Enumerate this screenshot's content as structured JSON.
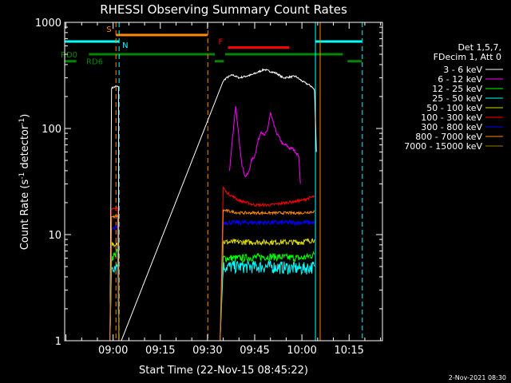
{
  "chart_data": {
    "type": "line",
    "title": "RHESSI Observing Summary Count Rates",
    "xlabel": "Start Time (22-Nov-15 08:45:22)",
    "ylabel": "Count Rate (s⁻¹ detector⁻¹)",
    "ylabel_parts": [
      "Count Rate (s",
      "-1",
      " detector",
      "-1",
      ")"
    ],
    "yscale": "log",
    "ylim": [
      1,
      1000
    ],
    "xlim_min": [
      -15.4,
      85.6
    ],
    "x_unit": "minutes after 09:00",
    "y_ticks": [
      {
        "v": 1,
        "label": "1"
      },
      {
        "v": 10,
        "label": "10"
      },
      {
        "v": 100,
        "label": "100"
      },
      {
        "v": 1000,
        "label": "1000"
      }
    ],
    "x_ticks": [
      {
        "m": 0,
        "label": "09:00"
      },
      {
        "m": 15,
        "label": "09:15"
      },
      {
        "m": 30,
        "label": "09:30"
      },
      {
        "m": 45,
        "label": "09:45"
      },
      {
        "m": 60,
        "label": "10:00"
      },
      {
        "m": 75,
        "label": "10:15"
      }
    ],
    "legend_header": [
      "Det 1,5,7,",
      "FDecim 1, Att 0"
    ],
    "legend_position": "right",
    "footer_date": "2-Nov-2021 08:30",
    "series": [
      {
        "name": "3 - 6 keV",
        "color": "#ffffff",
        "noise": 0.02,
        "x": [
          -1,
          -0.5,
          1,
          1.7,
          1.8,
          2.6,
          2.61,
          35,
          36,
          38,
          40,
          44,
          48,
          52,
          54,
          58,
          60,
          63,
          64,
          64.6
        ],
        "y": [
          1,
          240,
          250,
          245,
          1,
          1,
          1,
          280,
          300,
          320,
          300,
          320,
          360,
          330,
          300,
          310,
          280,
          250,
          230,
          60
        ]
      },
      {
        "name": "6 - 12 keV",
        "color": "#ff00ff",
        "noise": 0.03,
        "x": [
          37,
          38,
          39,
          40,
          41,
          42,
          43,
          44,
          45,
          46,
          47,
          48,
          49,
          50,
          51,
          52,
          53,
          54,
          55,
          56,
          57,
          58,
          59,
          59.5
        ],
        "y": [
          40,
          85,
          160,
          80,
          45,
          35,
          38,
          50,
          55,
          75,
          95,
          85,
          95,
          140,
          110,
          90,
          80,
          70,
          70,
          65,
          65,
          60,
          55,
          30
        ]
      },
      {
        "name": "12 - 25 keV",
        "color": "#00ff00",
        "noise": 0.08,
        "x": [
          -1,
          -0.5,
          1.5,
          1.8,
          34,
          35,
          40,
          50,
          60,
          64
        ],
        "y": [
          1,
          6,
          7,
          1,
          1,
          6,
          6,
          6.2,
          6,
          6.5
        ]
      },
      {
        "name": "25 - 50 keV",
        "color": "#00ffff",
        "noise": 0.14,
        "x": [
          -1,
          -0.5,
          1.5,
          1.8,
          34,
          35,
          40,
          50,
          60,
          64
        ],
        "y": [
          1,
          5,
          5.2,
          1,
          1,
          5,
          5,
          5,
          4.8,
          5
        ]
      },
      {
        "name": "50 - 100 keV",
        "color": "#dddd00",
        "noise": 0.06,
        "x": [
          -1,
          -0.5,
          1.5,
          1.8,
          34,
          35,
          40,
          50,
          60,
          64
        ],
        "y": [
          1,
          8,
          8.5,
          1,
          1,
          8.5,
          8.5,
          8.5,
          8.5,
          9
        ]
      },
      {
        "name": "100 - 300 keV",
        "color": "#ff0000",
        "noise": 0.03,
        "x": [
          -1,
          -0.5,
          1.5,
          1.8,
          34,
          35,
          36,
          40,
          45,
          50,
          55,
          60,
          64
        ],
        "y": [
          1,
          17,
          18,
          1,
          1,
          28,
          25,
          21,
          19,
          19,
          20,
          21,
          23
        ]
      },
      {
        "name": "300 - 800 keV",
        "color": "#0000ff",
        "noise": 0.05,
        "x": [
          -1,
          -0.5,
          1.5,
          1.8,
          34,
          35,
          40,
          50,
          60,
          64
        ],
        "y": [
          1,
          11,
          12,
          1,
          1,
          13,
          13,
          13,
          13,
          13
        ]
      },
      {
        "name": "800 - 7000 keV",
        "color": "#ff8800",
        "noise": 0.03,
        "x": [
          -1,
          -0.5,
          1.5,
          1.8,
          34,
          35,
          40,
          50,
          60,
          64
        ],
        "y": [
          1,
          14.5,
          15,
          1,
          1,
          17,
          16,
          16,
          16,
          16.5
        ]
      },
      {
        "name": "7000 - 15000 keV",
        "color": "#9a7a00",
        "noise": 0.05,
        "x": [
          1.7,
          1.8,
          1.9
        ],
        "y": [
          1,
          1.8,
          1
        ]
      }
    ],
    "flags": [
      {
        "label": "S",
        "color": "#ff8800",
        "x0": 0.9,
        "x1": 30,
        "y": 760
      },
      {
        "label": "N",
        "color": "#00ffff",
        "x0": -15.4,
        "x1": 1.9,
        "y": 660
      },
      {
        "label": "N",
        "color": "#00ffff",
        "x0": 64.3,
        "x1": 79,
        "y": 660,
        "hidden_label": true
      },
      {
        "label": "F",
        "color": "#ff0000",
        "x0": 36.5,
        "x1": 56,
        "y": 580
      },
      {
        "label": "RD0",
        "color": "#008800",
        "x0": -7.7,
        "x1": 32.3,
        "y": 500
      },
      {
        "label": "RD0",
        "color": "#008800",
        "x0": 35.6,
        "x1": 73,
        "y": 500,
        "hidden_label": true
      },
      {
        "label": "RD6",
        "color": "#008800",
        "x0": -15.4,
        "x1": -11.7,
        "y": 430
      },
      {
        "label": "RD6",
        "color": "#008800",
        "x0": 32.3,
        "x1": 35.2,
        "y": 430,
        "hidden_label": true
      },
      {
        "label": "RD6",
        "color": "#008800",
        "x0": 74.5,
        "x1": 79,
        "y": 430,
        "hidden_label": true
      }
    ],
    "vlines": [
      {
        "x": 0.9,
        "color": "#ff8800",
        "style": "dash"
      },
      {
        "x": 1.9,
        "color": "#00ffff",
        "style": "dash"
      },
      {
        "x": 30.1,
        "color": "#ff8800",
        "style": "dash"
      },
      {
        "x": 64.3,
        "color": "#00ffff",
        "style": "solid"
      },
      {
        "x": 65.8,
        "color": "#ff8800",
        "style": "solid"
      },
      {
        "x": 79.2,
        "color": "#00ffff",
        "style": "dash"
      }
    ]
  }
}
